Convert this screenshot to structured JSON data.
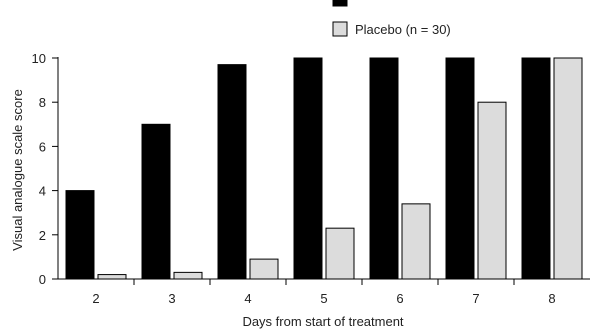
{
  "chart_data": {
    "type": "bar",
    "categories": [
      "2",
      "3",
      "4",
      "5",
      "6",
      "7",
      "8"
    ],
    "series": [
      {
        "values": [
          4.0,
          7.0,
          9.7,
          10.0,
          10.0,
          10.0,
          10.0
        ],
        "color": "#000000"
      },
      {
        "name": "Placebo (n = 30)",
        "values": [
          0.2,
          0.3,
          0.9,
          2.3,
          3.4,
          8.0,
          10.0
        ],
        "color": "#dcdcdc"
      }
    ],
    "xlabel": "Days from start of treatment",
    "ylabel": "Visual analogue scale score",
    "ylim": [
      0,
      10
    ],
    "yticks": [
      0,
      2,
      4,
      6,
      8,
      10
    ],
    "legend_position": "top-right",
    "grid": false
  }
}
